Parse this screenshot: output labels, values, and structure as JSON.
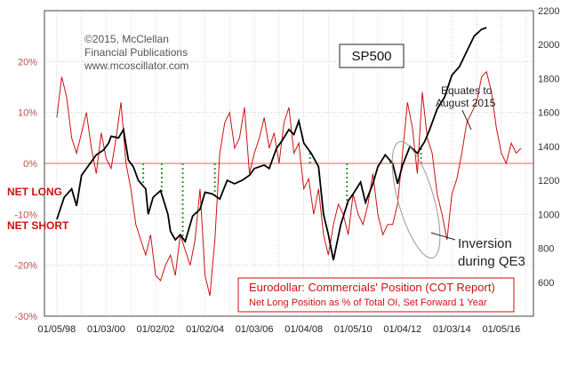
{
  "credit_lines": [
    "©2015, McClellan",
    "Financial Publications",
    "www.mcoscillator.com"
  ],
  "zero_labels": {
    "net_long": "NET LONG",
    "net_short": "NET SHORT"
  },
  "annotations": {
    "sp500": "SP500",
    "equates_1": "Equates to",
    "equates_2": "August 2015",
    "inversion_1": "Inversion",
    "inversion_2": "during QE3"
  },
  "legend": {
    "line1": "Eurodollar: Commercials' Position (COT Report)",
    "line2": "Net Long Position as % of Total OI, Set Forward 1 Year"
  },
  "colors": {
    "sp500": "#000000",
    "cot": "#cc1111",
    "zero_line": "#e06666",
    "markers": "#2e9b2e",
    "grid": "#bbbbbb",
    "ellipse": "#999999"
  },
  "chart_data": {
    "type": "line",
    "x_axis": {
      "tick_labels": [
        "01/05/98",
        "01/03/00",
        "01/02/02",
        "01/02/04",
        "01/03/06",
        "01/04/08",
        "01/05/10",
        "01/04/12",
        "01/03/14",
        "01/05/16"
      ],
      "tick_years": [
        1998.0,
        2000.0,
        2002.0,
        2004.0,
        2006.0,
        2008.0,
        2010.0,
        2012.0,
        2014.0,
        2016.0
      ],
      "range": [
        1997.5,
        2017.3
      ]
    },
    "left_axis": {
      "tick_labels": [
        "20%",
        "10%",
        "0%",
        "-10%",
        "-20%",
        "-30%"
      ],
      "ticks": [
        20,
        10,
        0,
        -10,
        -20,
        -30
      ],
      "range": [
        -30,
        30
      ]
    },
    "right_axis": {
      "tick_labels": [
        "2200",
        "2000",
        "1800",
        "1600",
        "1400",
        "1200",
        "1000",
        "800",
        "600"
      ],
      "ticks": [
        2200,
        2000,
        1800,
        1600,
        1400,
        1200,
        1000,
        800,
        600
      ],
      "range": [
        400,
        2200
      ]
    },
    "grid": "horizontal-and-vertical",
    "legend_placement": "bottom-right",
    "series": [
      {
        "name": "SP500",
        "axis": "right",
        "x": [
          1998.0,
          1998.3,
          1998.6,
          1998.8,
          1999.0,
          1999.3,
          1999.6,
          1999.9,
          2000.1,
          2000.2,
          2000.5,
          2000.7,
          2000.9,
          2001.1,
          2001.3,
          2001.6,
          2001.7,
          2001.9,
          2002.2,
          2002.5,
          2002.6,
          2002.8,
          2003.0,
          2003.2,
          2003.5,
          2003.8,
          2004.0,
          2004.3,
          2004.6,
          2004.9,
          2005.2,
          2005.5,
          2005.8,
          2006.0,
          2006.4,
          2006.6,
          2006.9,
          2007.1,
          2007.4,
          2007.6,
          2007.8,
          2008.0,
          2008.3,
          2008.6,
          2008.8,
          2009.0,
          2009.2,
          2009.5,
          2009.8,
          2010.0,
          2010.3,
          2010.5,
          2010.8,
          2011.0,
          2011.3,
          2011.6,
          2011.8,
          2012.0,
          2012.3,
          2012.6,
          2012.9,
          2013.1,
          2013.4,
          2013.7,
          2014.0,
          2014.3,
          2014.6,
          2014.9,
          2015.2,
          2015.4
        ],
        "values": [
          970,
          1100,
          1150,
          1050,
          1230,
          1290,
          1350,
          1380,
          1420,
          1460,
          1450,
          1500,
          1320,
          1280,
          1200,
          1150,
          1000,
          1100,
          1140,
          1000,
          900,
          850,
          880,
          840,
          990,
          1030,
          1130,
          1120,
          1090,
          1200,
          1180,
          1200,
          1230,
          1270,
          1290,
          1270,
          1390,
          1430,
          1500,
          1470,
          1550,
          1420,
          1360,
          1280,
          1000,
          880,
          730,
          940,
          1080,
          1120,
          1190,
          1070,
          1180,
          1280,
          1350,
          1300,
          1180,
          1290,
          1400,
          1360,
          1430,
          1500,
          1620,
          1690,
          1820,
          1870,
          1960,
          2050,
          2090,
          2100
        ]
      },
      {
        "name": "Eurodollar Commercials Net Long %",
        "axis": "left",
        "x": [
          1998.0,
          1998.2,
          1998.4,
          1998.6,
          1998.8,
          1999.0,
          1999.2,
          1999.4,
          1999.6,
          1999.8,
          2000.0,
          2000.2,
          2000.4,
          2000.6,
          2000.8,
          2001.0,
          2001.2,
          2001.4,
          2001.6,
          2001.8,
          2002.0,
          2002.2,
          2002.4,
          2002.6,
          2002.8,
          2003.0,
          2003.2,
          2003.4,
          2003.6,
          2003.8,
          2004.0,
          2004.2,
          2004.4,
          2004.6,
          2004.8,
          2005.0,
          2005.2,
          2005.4,
          2005.6,
          2005.8,
          2006.0,
          2006.2,
          2006.4,
          2006.6,
          2006.8,
          2007.0,
          2007.2,
          2007.4,
          2007.6,
          2007.8,
          2008.0,
          2008.2,
          2008.4,
          2008.6,
          2008.8,
          2009.0,
          2009.2,
          2009.4,
          2009.6,
          2009.8,
          2010.0,
          2010.2,
          2010.4,
          2010.6,
          2010.8,
          2011.0,
          2011.2,
          2011.4,
          2011.6,
          2011.8,
          2012.0,
          2012.2,
          2012.4,
          2012.6,
          2012.8,
          2013.0,
          2013.2,
          2013.4,
          2013.6,
          2013.8,
          2014.0,
          2014.2,
          2014.4,
          2014.6,
          2014.8,
          2015.0,
          2015.2,
          2015.4,
          2015.6,
          2015.8,
          2016.0,
          2016.2,
          2016.4,
          2016.6,
          2016.8
        ],
        "values": [
          9,
          17,
          13,
          5,
          2,
          6,
          10,
          3,
          -2,
          6,
          1,
          -1,
          5,
          12,
          0,
          -5,
          -12,
          -15,
          -18,
          -14,
          -22,
          -23,
          -20,
          -18,
          -22,
          -14,
          -17,
          -20,
          -15,
          -5,
          -22,
          -26,
          -15,
          2,
          8,
          10,
          3,
          5,
          11,
          -2,
          2,
          5,
          9,
          3,
          6,
          0,
          8,
          11,
          2,
          4,
          -5,
          -3,
          -10,
          -5,
          -14,
          -18,
          -12,
          -8,
          -10,
          -14,
          -6,
          -10,
          -12,
          -8,
          -2,
          -10,
          -14,
          -12,
          -12,
          -8,
          2,
          12,
          7,
          -2,
          14,
          5,
          2,
          -6,
          -10,
          -15,
          -6,
          -3,
          2,
          8,
          10,
          12,
          17,
          18,
          14,
          7,
          2,
          0,
          4,
          2,
          3
        ]
      }
    ],
    "green_markers_year": [
      1999.35,
      2001.5,
      2002.25,
      2003.1,
      2004.4,
      2008.25,
      2009.75,
      2011.1,
      2011.5,
      2012.75
    ]
  }
}
